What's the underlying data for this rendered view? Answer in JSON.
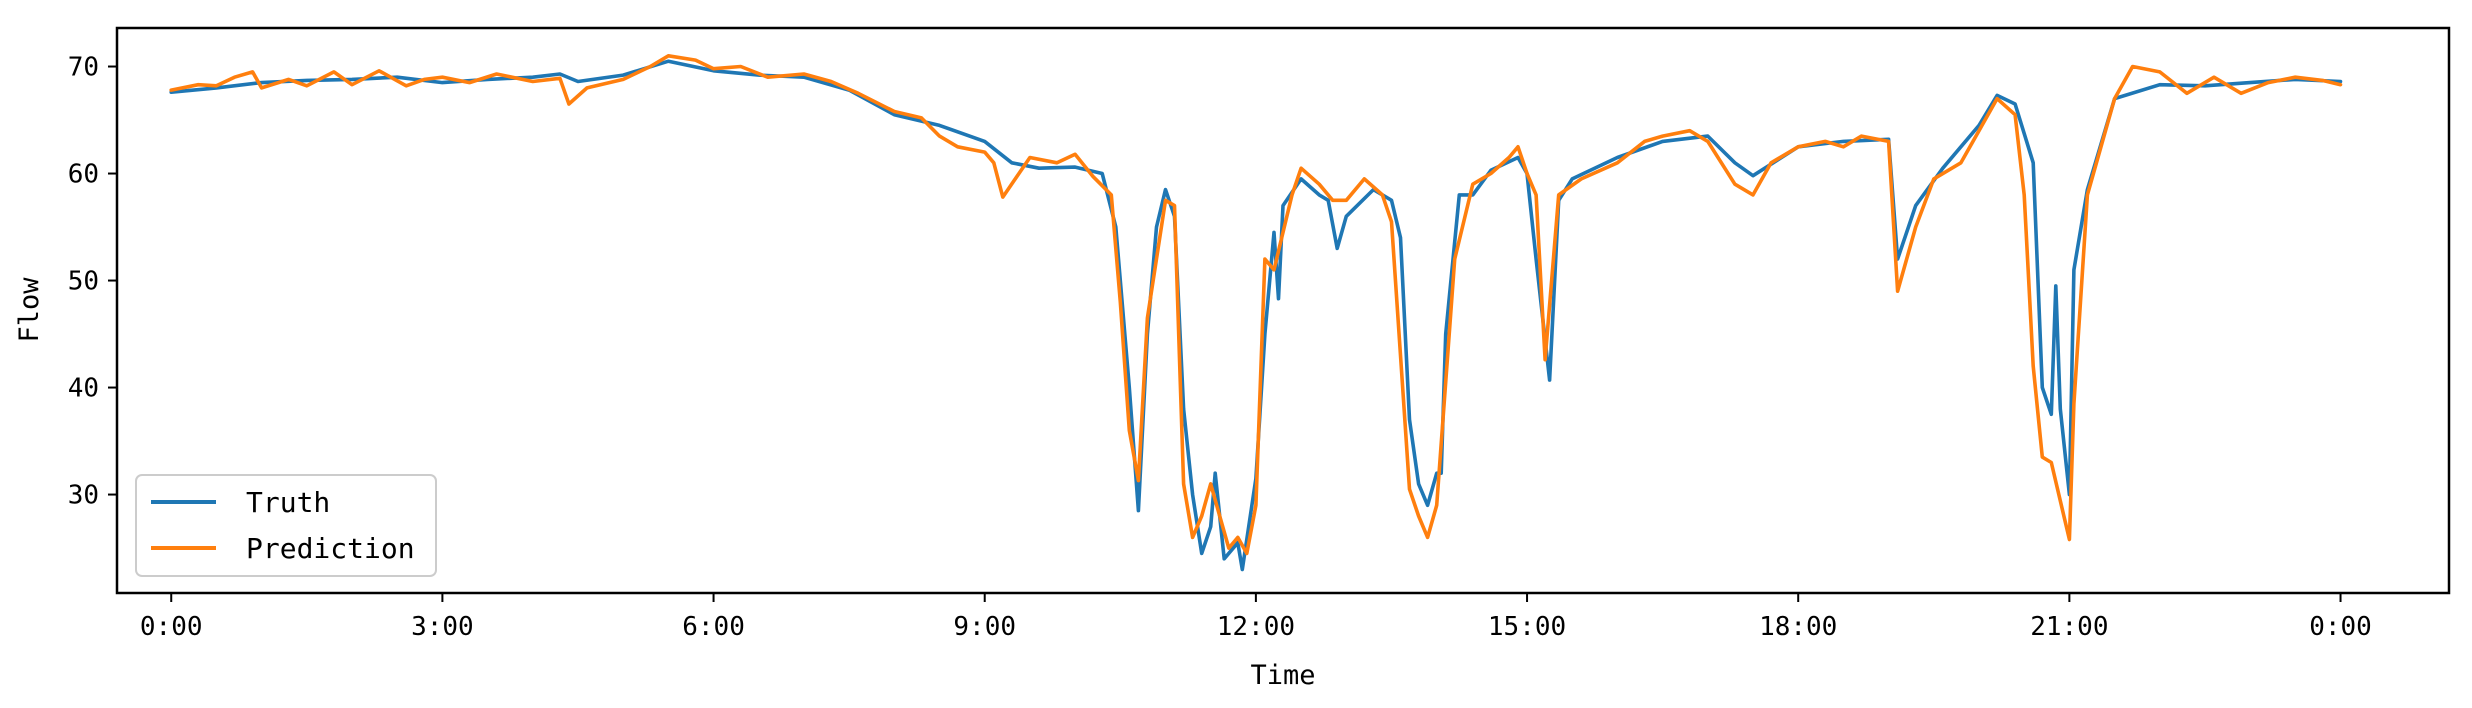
{
  "chart_data": {
    "type": "line",
    "title": "",
    "xlabel": "Time",
    "ylabel": "Flow",
    "xlim": [
      -0.6,
      25.2
    ],
    "ylim": [
      20.8,
      73.6
    ],
    "xticks": [
      {
        "value": 0,
        "label": "0:00"
      },
      {
        "value": 3,
        "label": "3:00"
      },
      {
        "value": 6,
        "label": "6:00"
      },
      {
        "value": 9,
        "label": "9:00"
      },
      {
        "value": 12,
        "label": "12:00"
      },
      {
        "value": 15,
        "label": "15:00"
      },
      {
        "value": 18,
        "label": "18:00"
      },
      {
        "value": 21,
        "label": "21:00"
      },
      {
        "value": 24,
        "label": "0:00"
      }
    ],
    "yticks": [
      30,
      40,
      50,
      60,
      70
    ],
    "grid": false,
    "legend": "lower-left",
    "series": [
      {
        "name": "Truth",
        "color": "#1f77b4",
        "points": [
          [
            0.0,
            67.6
          ],
          [
            0.5,
            68.0
          ],
          [
            1.0,
            68.5
          ],
          [
            1.5,
            68.7
          ],
          [
            2.0,
            68.8
          ],
          [
            2.5,
            69.0
          ],
          [
            3.0,
            68.5
          ],
          [
            3.5,
            68.8
          ],
          [
            4.0,
            69.0
          ],
          [
            4.3,
            69.3
          ],
          [
            4.5,
            68.6
          ],
          [
            5.0,
            69.2
          ],
          [
            5.5,
            70.5
          ],
          [
            6.0,
            69.6
          ],
          [
            6.5,
            69.2
          ],
          [
            7.0,
            69.0
          ],
          [
            7.5,
            67.8
          ],
          [
            8.0,
            65.5
          ],
          [
            8.5,
            64.5
          ],
          [
            9.0,
            63.0
          ],
          [
            9.3,
            61.0
          ],
          [
            9.6,
            60.5
          ],
          [
            10.0,
            60.6
          ],
          [
            10.3,
            60.0
          ],
          [
            10.45,
            55.0
          ],
          [
            10.6,
            40.0
          ],
          [
            10.7,
            28.5
          ],
          [
            10.8,
            45.0
          ],
          [
            10.9,
            55.0
          ],
          [
            11.0,
            58.5
          ],
          [
            11.1,
            56.0
          ],
          [
            11.2,
            38.0
          ],
          [
            11.3,
            30.0
          ],
          [
            11.4,
            24.5
          ],
          [
            11.5,
            27.0
          ],
          [
            11.55,
            32.0
          ],
          [
            11.65,
            24.0
          ],
          [
            11.8,
            25.5
          ],
          [
            11.85,
            23.0
          ],
          [
            12.0,
            31.5
          ],
          [
            12.1,
            45.0
          ],
          [
            12.2,
            54.5
          ],
          [
            12.25,
            48.3
          ],
          [
            12.3,
            57.0
          ],
          [
            12.5,
            59.5
          ],
          [
            12.7,
            58.0
          ],
          [
            12.8,
            57.5
          ],
          [
            12.9,
            53.0
          ],
          [
            13.0,
            56.0
          ],
          [
            13.3,
            58.5
          ],
          [
            13.5,
            57.5
          ],
          [
            13.6,
            54.0
          ],
          [
            13.7,
            37.0
          ],
          [
            13.8,
            31.0
          ],
          [
            13.9,
            29.0
          ],
          [
            14.0,
            32.0
          ],
          [
            14.05,
            32.0
          ],
          [
            14.1,
            45.0
          ],
          [
            14.25,
            58.0
          ],
          [
            14.4,
            58.0
          ],
          [
            14.6,
            60.3
          ],
          [
            14.9,
            61.5
          ],
          [
            15.0,
            60.0
          ],
          [
            15.1,
            52.0
          ],
          [
            15.25,
            40.7
          ],
          [
            15.35,
            57.5
          ],
          [
            15.5,
            59.5
          ],
          [
            16.0,
            61.5
          ],
          [
            16.5,
            63.0
          ],
          [
            17.0,
            63.5
          ],
          [
            17.3,
            61.0
          ],
          [
            17.5,
            59.8
          ],
          [
            18.0,
            62.5
          ],
          [
            18.5,
            63.0
          ],
          [
            19.0,
            63.2
          ],
          [
            19.1,
            52.0
          ],
          [
            19.3,
            57.0
          ],
          [
            19.6,
            60.5
          ],
          [
            20.0,
            64.5
          ],
          [
            20.2,
            67.3
          ],
          [
            20.4,
            66.5
          ],
          [
            20.6,
            61.0
          ],
          [
            20.7,
            40.0
          ],
          [
            20.8,
            37.5
          ],
          [
            20.85,
            49.5
          ],
          [
            20.9,
            38.0
          ],
          [
            21.0,
            30.0
          ],
          [
            21.05,
            51.0
          ],
          [
            21.2,
            58.5
          ],
          [
            21.5,
            67.0
          ],
          [
            22.0,
            68.3
          ],
          [
            22.5,
            68.2
          ],
          [
            23.0,
            68.5
          ],
          [
            23.5,
            68.8
          ],
          [
            24.0,
            68.6
          ]
        ]
      },
      {
        "name": "Prediction",
        "color": "#ff7f0e",
        "points": [
          [
            0.0,
            67.8
          ],
          [
            0.3,
            68.3
          ],
          [
            0.5,
            68.2
          ],
          [
            0.7,
            69.0
          ],
          [
            0.9,
            69.5
          ],
          [
            1.0,
            68.0
          ],
          [
            1.3,
            68.8
          ],
          [
            1.5,
            68.2
          ],
          [
            1.8,
            69.5
          ],
          [
            2.0,
            68.3
          ],
          [
            2.3,
            69.6
          ],
          [
            2.6,
            68.2
          ],
          [
            2.8,
            68.8
          ],
          [
            3.0,
            69.0
          ],
          [
            3.3,
            68.5
          ],
          [
            3.6,
            69.3
          ],
          [
            4.0,
            68.6
          ],
          [
            4.3,
            68.9
          ],
          [
            4.4,
            66.5
          ],
          [
            4.6,
            68.0
          ],
          [
            5.0,
            68.8
          ],
          [
            5.3,
            70.0
          ],
          [
            5.5,
            71.0
          ],
          [
            5.8,
            70.6
          ],
          [
            6.0,
            69.8
          ],
          [
            6.3,
            70.0
          ],
          [
            6.6,
            69.0
          ],
          [
            7.0,
            69.3
          ],
          [
            7.3,
            68.6
          ],
          [
            7.6,
            67.5
          ],
          [
            8.0,
            65.8
          ],
          [
            8.3,
            65.2
          ],
          [
            8.5,
            63.5
          ],
          [
            8.7,
            62.5
          ],
          [
            9.0,
            62.0
          ],
          [
            9.1,
            61.0
          ],
          [
            9.2,
            57.8
          ],
          [
            9.5,
            61.5
          ],
          [
            9.8,
            61.0
          ],
          [
            10.0,
            61.8
          ],
          [
            10.2,
            59.7
          ],
          [
            10.4,
            58.0
          ],
          [
            10.5,
            48.0
          ],
          [
            10.6,
            36.0
          ],
          [
            10.7,
            31.3
          ],
          [
            10.8,
            46.5
          ],
          [
            11.0,
            57.5
          ],
          [
            11.1,
            57.0
          ],
          [
            11.2,
            31.0
          ],
          [
            11.3,
            26.0
          ],
          [
            11.4,
            28.0
          ],
          [
            11.5,
            31.0
          ],
          [
            11.6,
            28.0
          ],
          [
            11.7,
            25.0
          ],
          [
            11.8,
            26.0
          ],
          [
            11.9,
            24.5
          ],
          [
            12.0,
            29.0
          ],
          [
            12.1,
            52.0
          ],
          [
            12.2,
            51.0
          ],
          [
            12.4,
            58.0
          ],
          [
            12.5,
            60.5
          ],
          [
            12.7,
            59.0
          ],
          [
            12.85,
            57.5
          ],
          [
            13.0,
            57.5
          ],
          [
            13.2,
            59.5
          ],
          [
            13.4,
            58.0
          ],
          [
            13.5,
            55.5
          ],
          [
            13.6,
            43.0
          ],
          [
            13.7,
            30.5
          ],
          [
            13.8,
            28.0
          ],
          [
            13.9,
            26.0
          ],
          [
            14.0,
            29.0
          ],
          [
            14.2,
            52.0
          ],
          [
            14.4,
            59.0
          ],
          [
            14.6,
            60.0
          ],
          [
            14.8,
            61.5
          ],
          [
            14.9,
            62.5
          ],
          [
            15.0,
            60.0
          ],
          [
            15.1,
            58.0
          ],
          [
            15.2,
            42.6
          ],
          [
            15.35,
            58.0
          ],
          [
            15.6,
            59.5
          ],
          [
            16.0,
            61.0
          ],
          [
            16.3,
            63.0
          ],
          [
            16.5,
            63.5
          ],
          [
            16.8,
            64.0
          ],
          [
            17.0,
            63.0
          ],
          [
            17.3,
            59.0
          ],
          [
            17.5,
            58.0
          ],
          [
            17.7,
            61.0
          ],
          [
            18.0,
            62.5
          ],
          [
            18.3,
            63.0
          ],
          [
            18.5,
            62.5
          ],
          [
            18.7,
            63.5
          ],
          [
            19.0,
            63.0
          ],
          [
            19.1,
            49.0
          ],
          [
            19.3,
            55.0
          ],
          [
            19.5,
            59.5
          ],
          [
            19.8,
            61.0
          ],
          [
            20.0,
            64.0
          ],
          [
            20.2,
            67.0
          ],
          [
            20.4,
            65.5
          ],
          [
            20.5,
            58.0
          ],
          [
            20.6,
            42.0
          ],
          [
            20.7,
            33.5
          ],
          [
            20.8,
            33.0
          ],
          [
            21.0,
            25.8
          ],
          [
            21.05,
            38.5
          ],
          [
            21.2,
            58.0
          ],
          [
            21.5,
            67.0
          ],
          [
            21.7,
            70.0
          ],
          [
            22.0,
            69.5
          ],
          [
            22.3,
            67.5
          ],
          [
            22.6,
            69.0
          ],
          [
            22.9,
            67.5
          ],
          [
            23.2,
            68.5
          ],
          [
            23.5,
            69.0
          ],
          [
            23.8,
            68.7
          ],
          [
            24.0,
            68.3
          ]
        ]
      }
    ]
  }
}
